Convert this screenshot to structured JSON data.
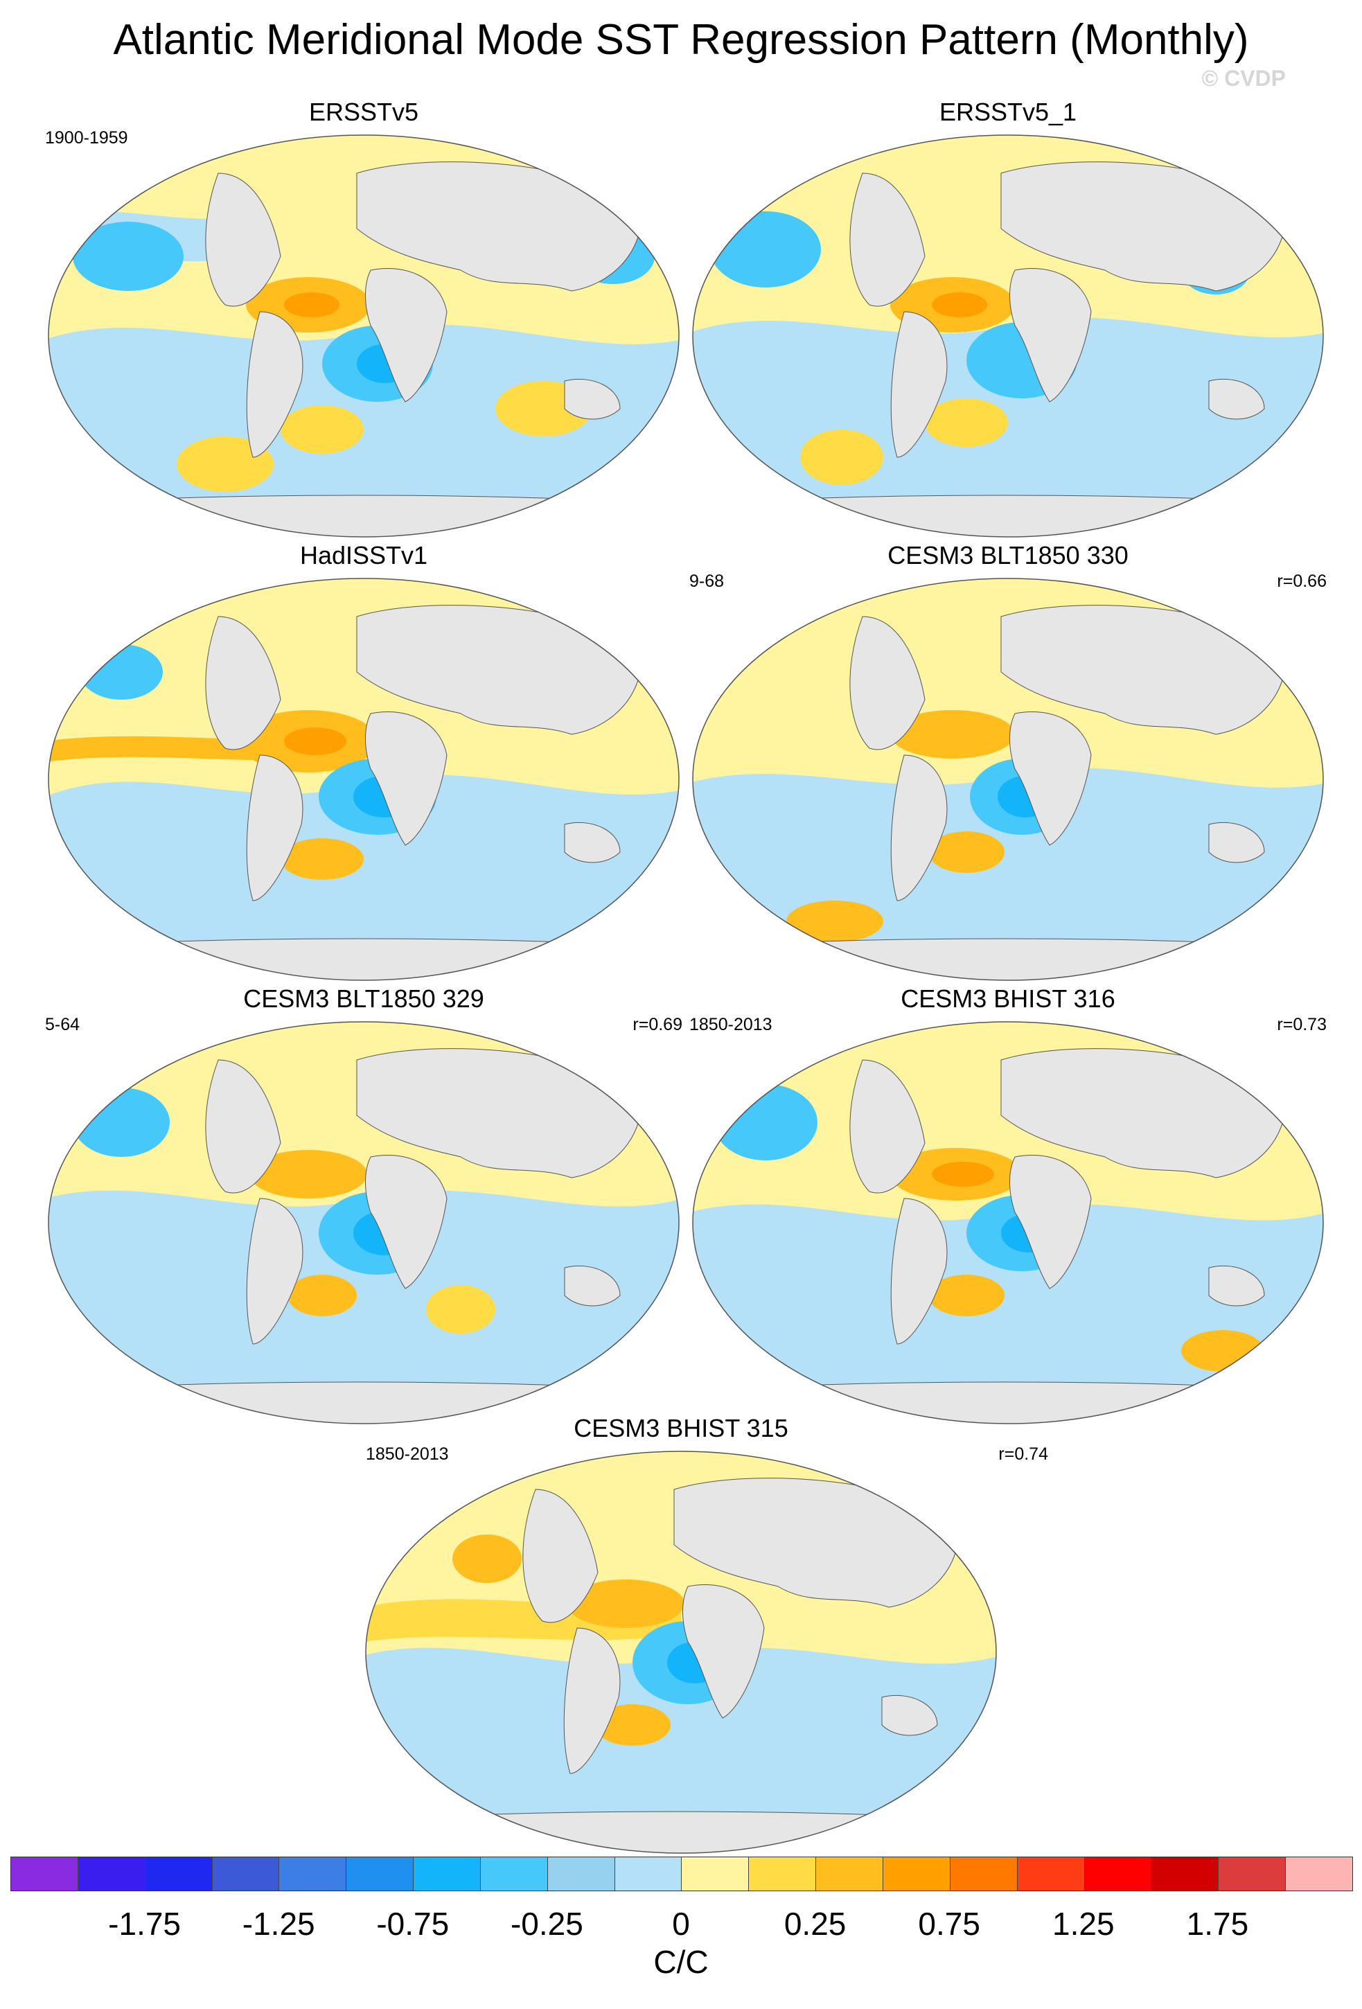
{
  "title": "Atlantic Meridional Mode SST Regression Pattern (Monthly)",
  "copyright": "© CVDP",
  "panels": [
    {
      "title": "ERSSTv5",
      "left": "1900-1959",
      "right": ""
    },
    {
      "title": "ERSSTv5_1",
      "left": "",
      "right": ""
    },
    {
      "title": "HadISSTv1",
      "left": "",
      "right": ""
    },
    {
      "title": "CESM3 BLT1850 330",
      "left": "9-68",
      "right": "r=0.66"
    },
    {
      "title": "CESM3 BLT1850 329",
      "left": "5-64",
      "right": "r=0.69"
    },
    {
      "title": "CESM3 BHIST 316",
      "left": "1850-2013",
      "right": "r=0.73"
    },
    {
      "title": "CESM3 BHIST 315",
      "left": "1850-2013",
      "right": "r=0.74"
    }
  ],
  "colorbar": {
    "colors": [
      "#8a2be2",
      "#3a1ef0",
      "#1e28f0",
      "#3c5ad8",
      "#3c7ee6",
      "#2090f0",
      "#14b4fa",
      "#46c8fa",
      "#96d2f0",
      "#b4e1f8",
      "#fff5a0",
      "#ffdc46",
      "#ffbe1e",
      "#ffa000",
      "#ff7800",
      "#ff3c14",
      "#ff0000",
      "#d20000",
      "#dc3c3c",
      "#ffb4b4"
    ],
    "tick_labels": [
      "-1.75",
      "-1.25",
      "-0.75",
      "-0.25",
      "0",
      "0.25",
      "0.75",
      "1.25",
      "1.75"
    ],
    "units": "C/C"
  }
}
